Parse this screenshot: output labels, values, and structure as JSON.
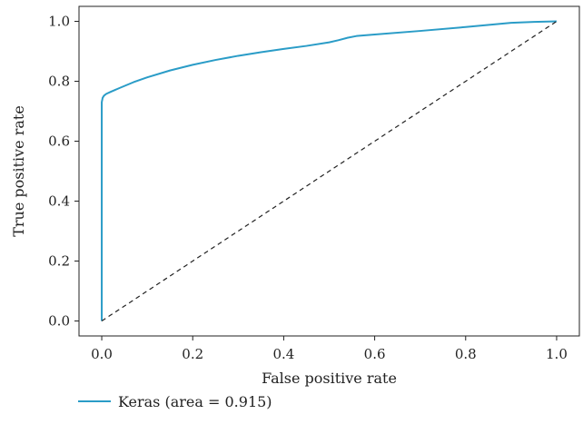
{
  "chart_data": {
    "type": "line",
    "title": "",
    "xlabel": "False positive rate",
    "ylabel": "True positive rate",
    "xlim": [
      -0.05,
      1.05
    ],
    "ylim": [
      -0.05,
      1.05
    ],
    "x_ticks": [
      0.0,
      0.2,
      0.4,
      0.6,
      0.8,
      1.0
    ],
    "y_ticks": [
      0.0,
      0.2,
      0.4,
      0.6,
      0.8,
      1.0
    ],
    "x_tick_labels": [
      "0.0",
      "0.2",
      "0.4",
      "0.6",
      "0.8",
      "1.0"
    ],
    "y_tick_labels": [
      "0.0",
      "0.2",
      "0.4",
      "0.6",
      "0.8",
      "1.0"
    ],
    "grid": false,
    "legend_position": "below",
    "series": [
      {
        "name": "Keras (area = 0.915)",
        "color": "#2a9cc7",
        "style": "solid",
        "x": [
          0.0,
          0.0,
          0.0,
          0.002,
          0.005,
          0.01,
          0.02,
          0.04,
          0.07,
          0.1,
          0.15,
          0.2,
          0.25,
          0.3,
          0.35,
          0.4,
          0.45,
          0.5,
          0.52,
          0.54,
          0.56,
          0.6,
          0.7,
          0.8,
          0.9,
          0.95,
          1.0
        ],
        "y": [
          0.0,
          0.6,
          0.73,
          0.745,
          0.752,
          0.758,
          0.765,
          0.778,
          0.797,
          0.813,
          0.836,
          0.855,
          0.871,
          0.885,
          0.897,
          0.908,
          0.918,
          0.93,
          0.937,
          0.945,
          0.951,
          0.956,
          0.968,
          0.981,
          0.995,
          0.998,
          1.0
        ]
      },
      {
        "name": "",
        "color": "#222222",
        "style": "dashed",
        "x": [
          0.0,
          1.0
        ],
        "y": [
          0.0,
          1.0
        ]
      }
    ],
    "legend": [
      {
        "label": "Keras (area = 0.915)",
        "color": "#2a9cc7"
      }
    ]
  }
}
